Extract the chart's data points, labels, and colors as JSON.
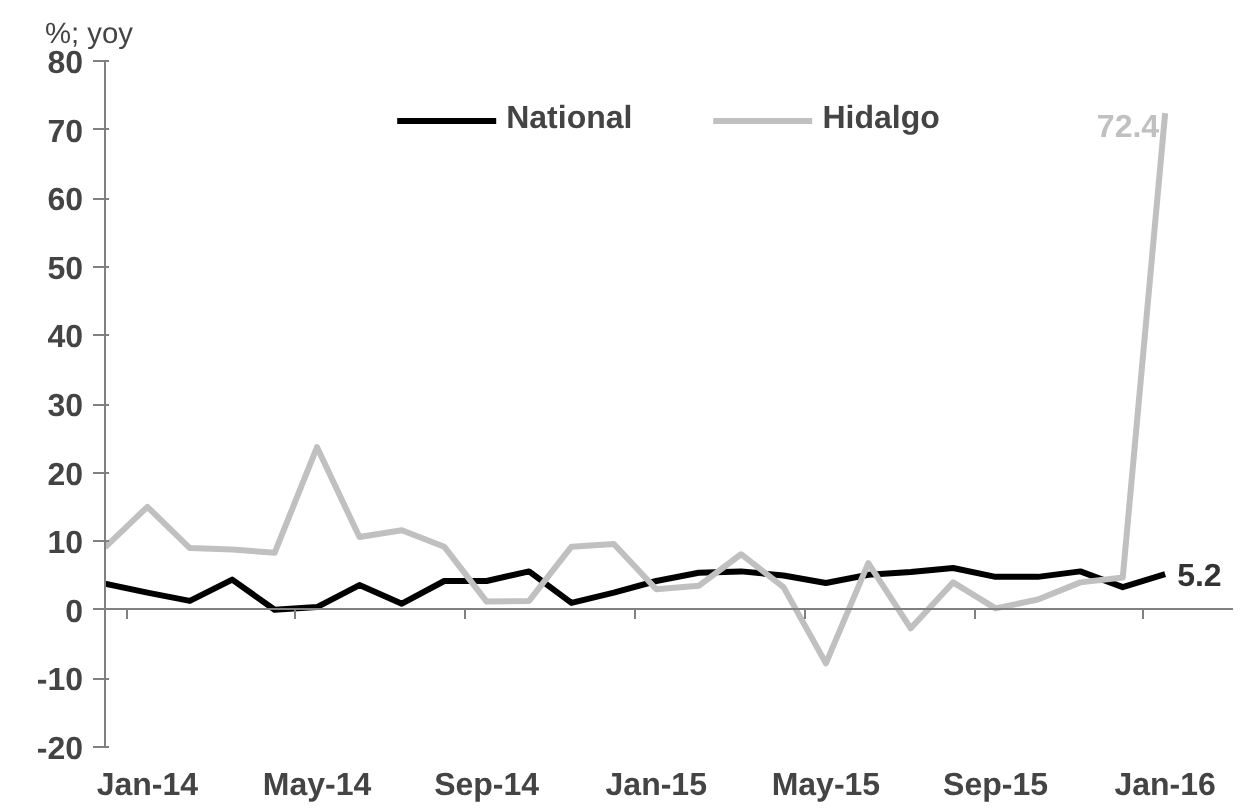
{
  "chart_data": {
    "type": "line",
    "ylabel": "%; yoy",
    "categories": [
      null,
      "Jan-14",
      null,
      null,
      null,
      "May-14",
      null,
      null,
      null,
      "Sep-14",
      null,
      null,
      null,
      "Jan-15",
      null,
      null,
      null,
      "May-15",
      null,
      null,
      null,
      "Sep-15",
      null,
      null,
      null,
      "Jan-16"
    ],
    "series": [
      {
        "name": "National",
        "color": "#000000",
        "values": [
          3.8,
          2.5,
          1.3,
          4.4,
          0.0,
          0.4,
          3.6,
          0.9,
          4.2,
          4.2,
          5.6,
          1.0,
          2.5,
          4.2,
          5.4,
          5.6,
          5.0,
          3.9,
          5.1,
          5.5,
          6.1,
          4.8,
          4.8,
          5.6,
          3.3,
          5.2
        ],
        "value_labels": [
          null,
          null,
          null,
          null,
          null,
          null,
          null,
          null,
          null,
          null,
          null,
          null,
          null,
          null,
          null,
          null,
          null,
          null,
          null,
          null,
          null,
          null,
          null,
          null,
          null,
          "5.2"
        ]
      },
      {
        "name": "Hidalgo",
        "color": "#c0c0c0",
        "values": [
          9.1,
          15.0,
          9.0,
          8.8,
          8.3,
          23.7,
          10.6,
          11.6,
          9.2,
          1.2,
          1.3,
          9.2,
          9.6,
          3.0,
          3.5,
          8.1,
          3.3,
          -7.8,
          6.8,
          -2.7,
          4.0,
          0.2,
          1.5,
          4.0,
          4.7,
          72.4
        ],
        "value_labels": [
          null,
          null,
          null,
          null,
          null,
          null,
          null,
          null,
          null,
          null,
          null,
          null,
          null,
          null,
          null,
          null,
          null,
          null,
          null,
          null,
          null,
          null,
          null,
          null,
          null,
          "72.4"
        ]
      }
    ],
    "ylim": [
      -20,
      80
    ],
    "yticks": [
      -20,
      -10,
      0,
      10,
      20,
      30,
      40,
      50,
      60,
      70,
      80
    ],
    "legend": "top",
    "marker": "none",
    "line_style": "solid"
  }
}
